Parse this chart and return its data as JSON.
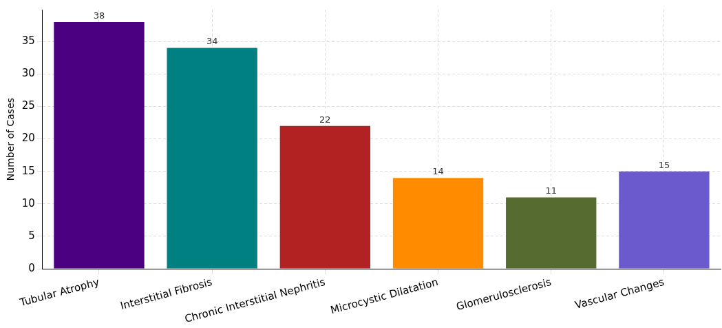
{
  "chart_data": {
    "type": "bar",
    "ylabel": "Number of Cases",
    "categories": [
      "Tubular Atrophy",
      "Interstitial Fibrosis",
      "Chronic Interstitial Nephritis",
      "Microcystic Dilatation",
      "Glomerulosclerosis",
      "Vascular Changes"
    ],
    "values": [
      38,
      34,
      22,
      14,
      11,
      15
    ],
    "colors": [
      "#4b0082",
      "#008080",
      "#b22222",
      "#ff8c00",
      "#556b2f",
      "#6a5acd"
    ],
    "ylim": [
      0,
      39.9
    ],
    "yticks": [
      0,
      5,
      10,
      15,
      20,
      25,
      30,
      35
    ],
    "grid": true,
    "data_labels": true
  }
}
